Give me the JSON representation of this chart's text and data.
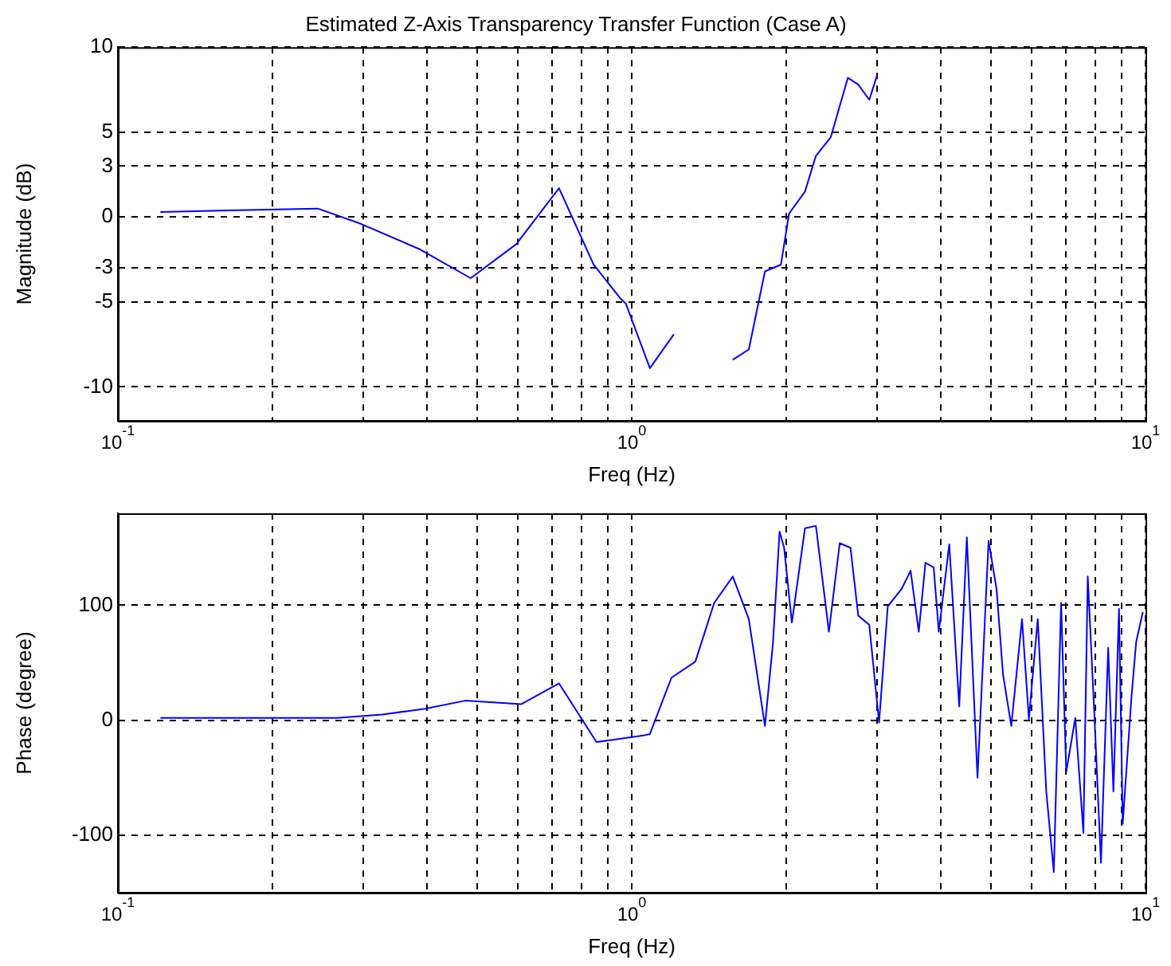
{
  "chart_data": [
    {
      "type": "line",
      "title": "Estimated Z-Axis Transparency Transfer Function (Case A)",
      "xlabel": "Freq (Hz)",
      "ylabel": "Magnitude (dB)",
      "log": "x",
      "grid": true,
      "legend": false,
      "xlim": [
        0.1,
        10
      ],
      "xticks": [
        {
          "value": 0.1,
          "label": "10$^{-1}$"
        },
        {
          "value": 0.2,
          "label": null
        },
        {
          "value": 0.3,
          "label": null
        },
        {
          "value": 0.4,
          "label": null
        },
        {
          "value": 0.5,
          "label": null
        },
        {
          "value": 0.6,
          "label": null
        },
        {
          "value": 0.7,
          "label": null
        },
        {
          "value": 0.8,
          "label": null
        },
        {
          "value": 0.9,
          "label": null
        },
        {
          "value": 1,
          "label": "10$^{0}$"
        },
        {
          "value": 2,
          "label": null
        },
        {
          "value": 3,
          "label": null
        },
        {
          "value": 4,
          "label": null
        },
        {
          "value": 5,
          "label": null
        },
        {
          "value": 6,
          "label": null
        },
        {
          "value": 7,
          "label": null
        },
        {
          "value": 8,
          "label": null
        },
        {
          "value": 9,
          "label": null
        },
        {
          "value": 10,
          "label": "10$^{1}$"
        }
      ],
      "ylim": [
        -12,
        10
      ],
      "yticks": [
        -10,
        -5,
        -3,
        0,
        3,
        5,
        10
      ],
      "series": [
        {
          "color": "#0000ff",
          "x": [
            0.121,
            0.171,
            0.245,
            0.297,
            0.387,
            0.486,
            0.596,
            0.722,
            0.843,
            0.951,
            0.974,
            1.085,
            1.208,
            1.38,
            1.573,
            1.69,
            1.817,
            1.952,
            2.024,
            2.174,
            2.283,
            2.44,
            2.635,
            2.76,
            2.9,
            3.0
          ],
          "values": [
            0.3,
            0.4,
            0.5,
            -0.4,
            -1.9,
            -3.6,
            -1.6,
            1.7,
            -2.8,
            -4.8,
            -5.1,
            -8.9,
            -6.9,
            null,
            -8.4,
            -7.8,
            -3.2,
            -2.8,
            0.2,
            1.5,
            3.6,
            4.7,
            8.2,
            7.8,
            6.9,
            8.3
          ]
        }
      ]
    },
    {
      "type": "line",
      "xlabel": "Freq (Hz)",
      "ylabel": "Phase (degree)",
      "log": "x",
      "grid": true,
      "legend": false,
      "xlim": [
        0.1,
        10
      ],
      "xticks": [
        {
          "value": 0.1,
          "label": "10$^{-1}$"
        },
        {
          "value": 0.2,
          "label": null
        },
        {
          "value": 0.3,
          "label": null
        },
        {
          "value": 0.4,
          "label": null
        },
        {
          "value": 0.5,
          "label": null
        },
        {
          "value": 0.6,
          "label": null
        },
        {
          "value": 0.7,
          "label": null
        },
        {
          "value": 0.8,
          "label": null
        },
        {
          "value": 0.9,
          "label": null
        },
        {
          "value": 1,
          "label": "10$^{0}$"
        },
        {
          "value": 2,
          "label": null
        },
        {
          "value": 3,
          "label": null
        },
        {
          "value": 4,
          "label": null
        },
        {
          "value": 5,
          "label": null
        },
        {
          "value": 6,
          "label": null
        },
        {
          "value": 7,
          "label": null
        },
        {
          "value": 8,
          "label": null
        },
        {
          "value": 9,
          "label": null
        },
        {
          "value": 10,
          "label": "10$^{1}$"
        }
      ],
      "ylim": [
        -150,
        180
      ],
      "yticks": [
        -100,
        0,
        100
      ],
      "series": [
        {
          "color": "#0000ff",
          "x": [
            0.121,
            0.267,
            0.327,
            0.396,
            0.474,
            0.61,
            0.722,
            0.854,
            1.06,
            1.085,
            1.195,
            1.33,
            1.447,
            1.573,
            1.69,
            1.817,
            1.884,
            1.94,
            1.98,
            2.05,
            2.174,
            2.283,
            2.42,
            2.54,
            2.666,
            2.76,
            2.9,
            3.03,
            3.15,
            3.35,
            3.49,
            3.62,
            3.73,
            3.87,
            3.96,
            4.15,
            4.34,
            4.49,
            4.71,
            4.95,
            5.13,
            5.28,
            5.48,
            5.75,
            5.93,
            6.17,
            6.41,
            6.63,
            6.85,
            7.01,
            7.3,
            7.57,
            7.72,
            7.95,
            8.19,
            8.46,
            8.66,
            8.88,
            9.03,
            9.39,
            9.59,
            9.88
          ],
          "values": [
            2,
            2,
            5,
            10,
            17,
            14,
            32,
            -19,
            -13,
            -12,
            37,
            51,
            102,
            125,
            88,
            -5,
            68,
            164,
            150,
            85,
            167,
            169,
            77,
            154,
            150,
            91,
            83,
            -2,
            99,
            114,
            130,
            77,
            137,
            133,
            77,
            153,
            12,
            159,
            -50,
            156,
            114,
            40,
            -5,
            88,
            1,
            88,
            -62,
            -132,
            102,
            -45,
            2,
            -98,
            125,
            6,
            -124,
            63,
            -62,
            97,
            -90,
            20,
            68,
            94
          ]
        }
      ]
    }
  ]
}
